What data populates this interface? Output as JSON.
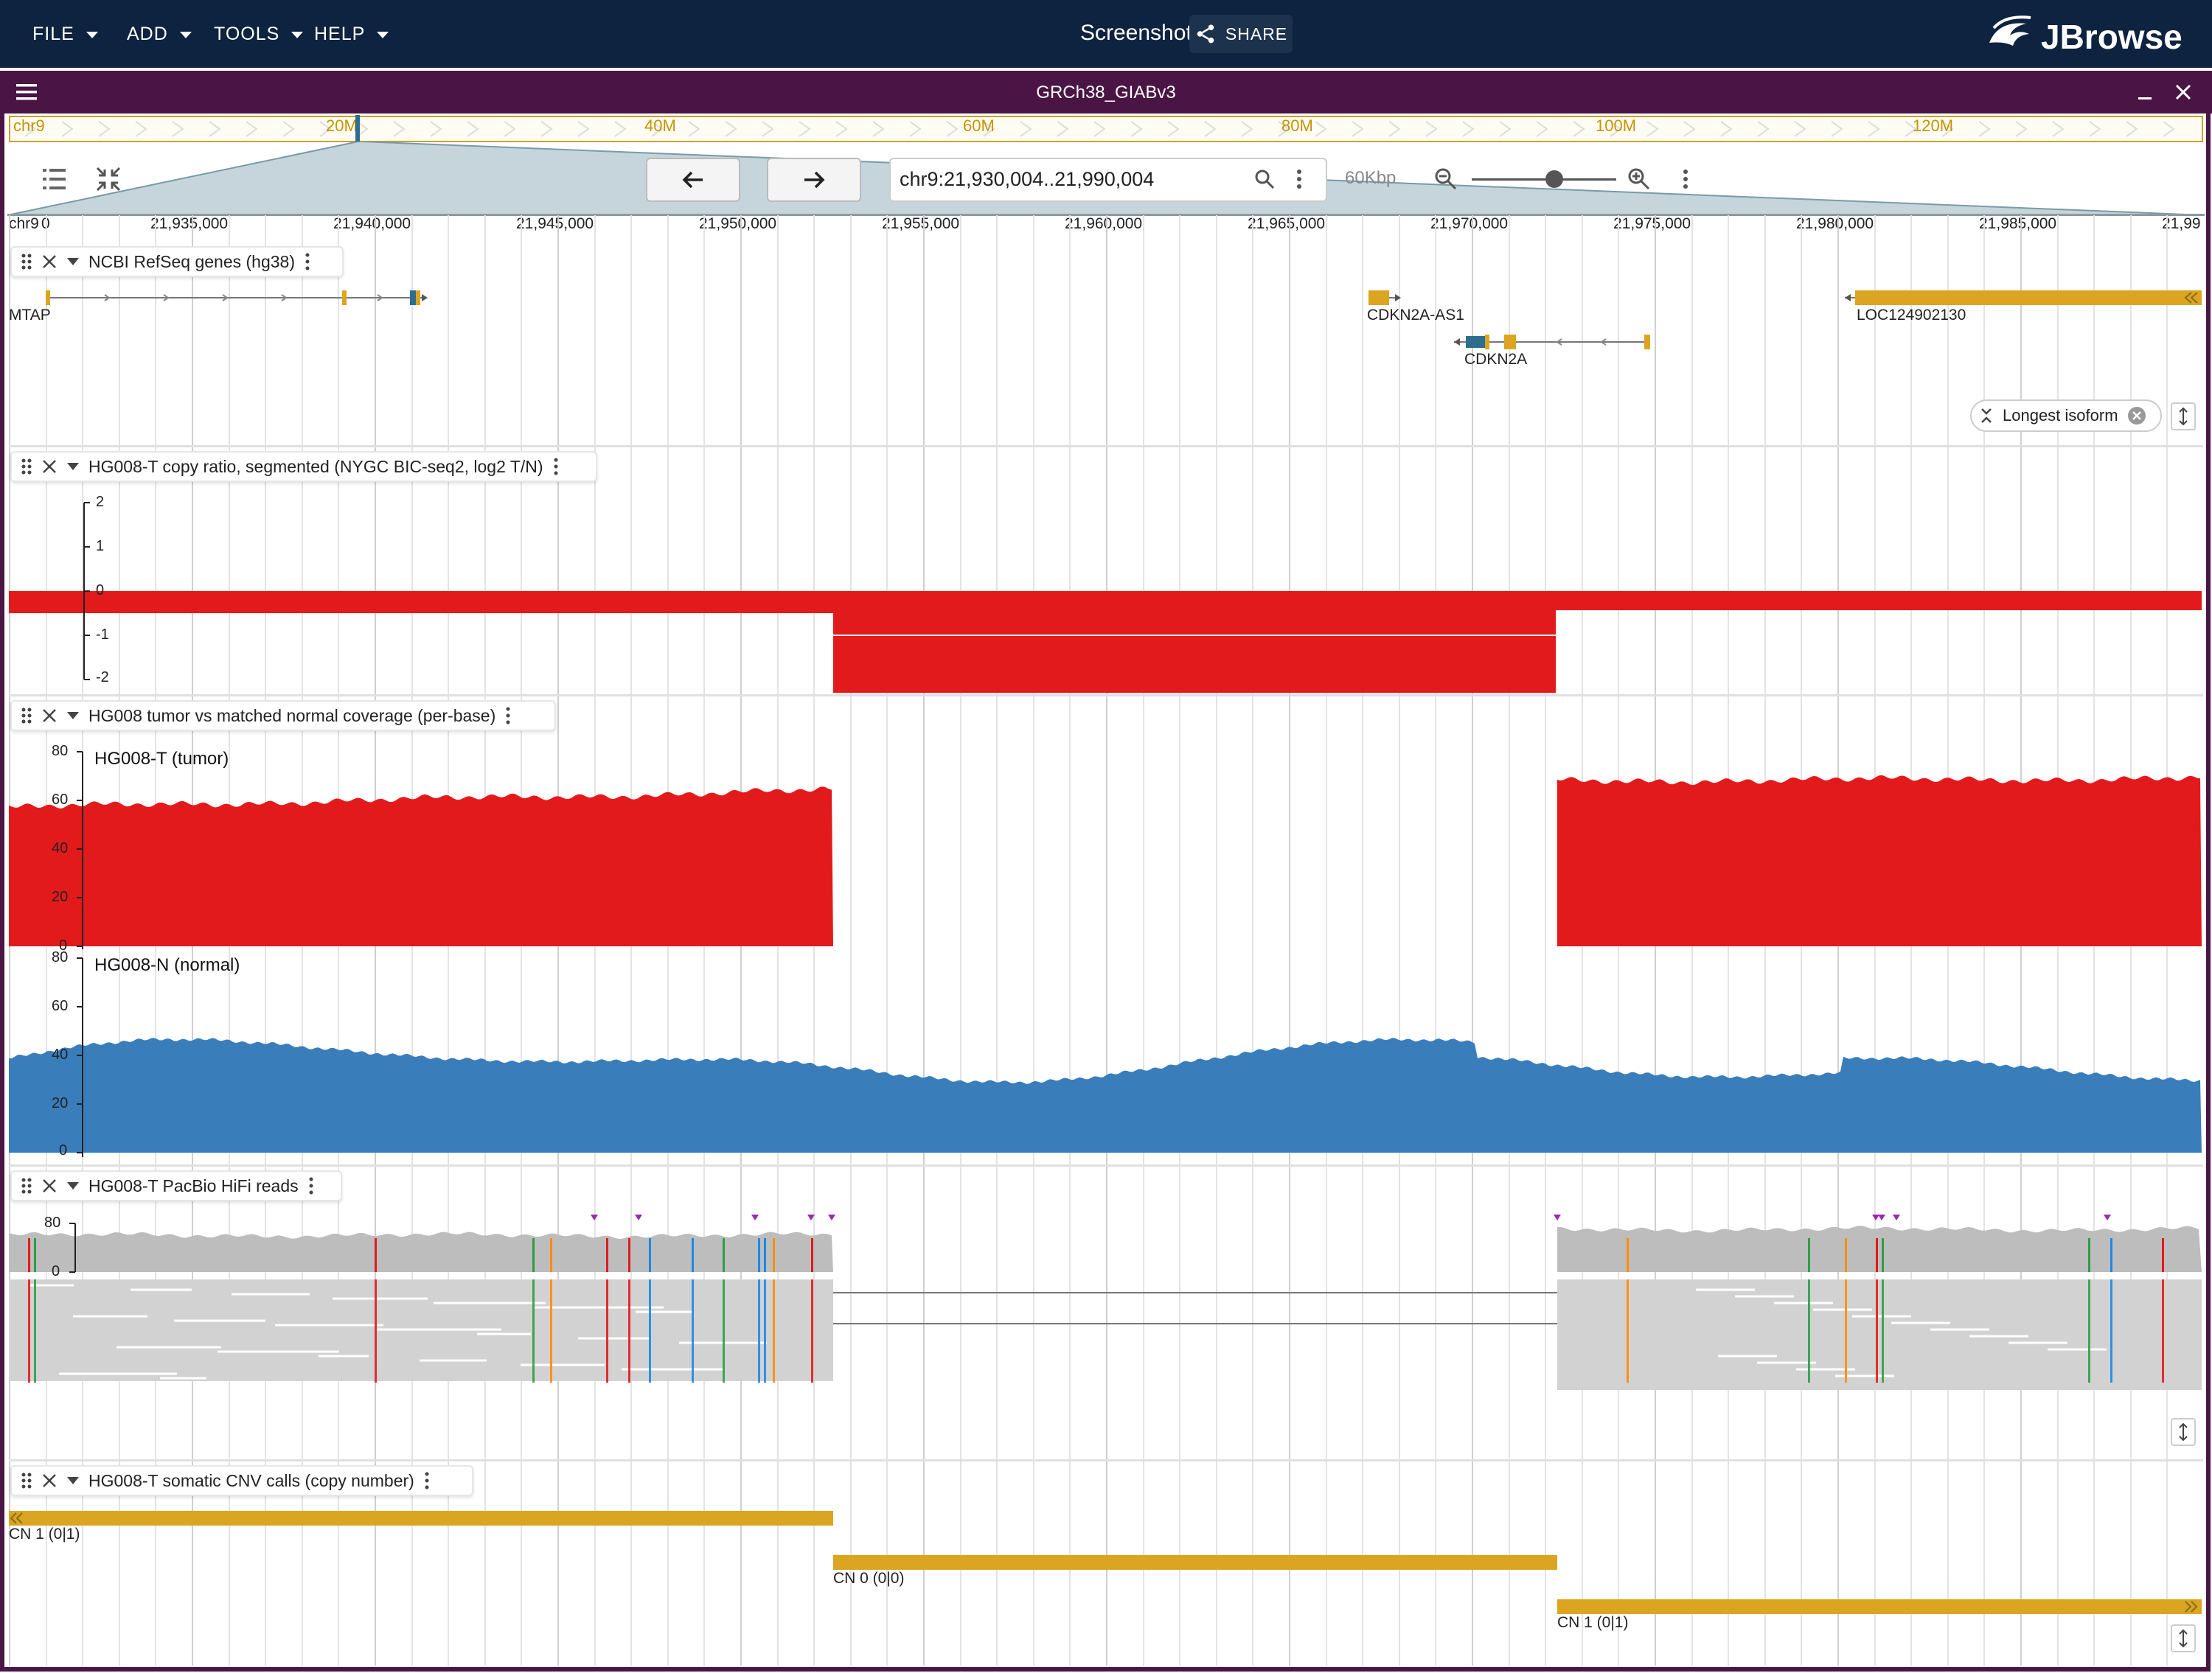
{
  "menu": {
    "file": "FILE",
    "add": "ADD",
    "tools": "TOOLS",
    "help": "HELP"
  },
  "session": {
    "name": "Screenshot",
    "share_label": "SHARE"
  },
  "brand": {
    "logo_text": "JBrowse"
  },
  "view": {
    "assembly": "GRCh38_GIABv3",
    "overview": {
      "chrom": "chr9",
      "ticks": [
        "20M",
        "40M",
        "60M",
        "80M",
        "100M",
        "120M"
      ]
    },
    "location": "chr9:21,930,004..21,990,004",
    "span": "60Kbp",
    "zoom_level": 0.57,
    "ruler": {
      "chrom": "chr9",
      "first_tick": "0",
      "ticks": [
        "21,935,000",
        "21,940,000",
        "21,945,000",
        "21,950,000",
        "21,955,000",
        "21,960,000",
        "21,965,000",
        "21,970,000",
        "21,975,000",
        "21,980,000",
        "21,985,000",
        "21,99"
      ]
    }
  },
  "tracks": {
    "genes": {
      "title": "NCBI RefSeq genes (hg38)",
      "features": [
        "MTAP",
        "CDKN2A-AS1",
        "CDKN2A",
        "LOC124902130"
      ],
      "isoform_chip": "Longest isoform"
    },
    "copy_ratio": {
      "title": "HG008-T copy ratio, segmented (NYGC BIC-seq2, log2 T/N)",
      "axis": [
        "2",
        "1",
        "0",
        "-1",
        "-2"
      ]
    },
    "coverage": {
      "title": "HG008 tumor vs matched normal coverage (per-base)",
      "tumor_label": "HG008-T (tumor)",
      "normal_label": "HG008-N (normal)",
      "axis": [
        "80",
        "60",
        "40",
        "20",
        "0"
      ]
    },
    "reads": {
      "title": "HG008-T PacBio HiFi reads",
      "axis": [
        "80",
        "0"
      ]
    },
    "cnv": {
      "title": "HG008-T somatic CNV calls (copy number)",
      "calls": [
        "CN 1 (0|1)",
        "CN 0 (0|0)",
        "CN 1 (0|1)"
      ]
    }
  },
  "colors": {
    "tumor": "#e31a1c",
    "normal": "#3a7dbb",
    "feature": "#dba522",
    "header": "#0d233f",
    "view_header": "#4a1445"
  }
}
